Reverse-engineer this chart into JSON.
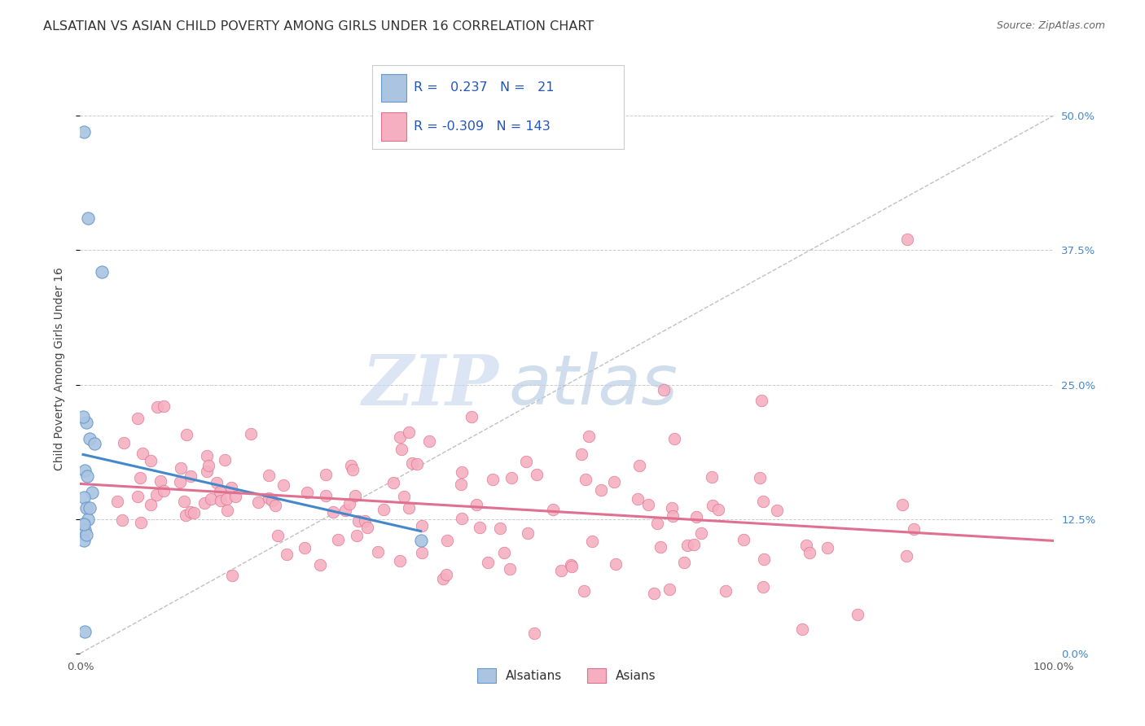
{
  "title": "ALSATIAN VS ASIAN CHILD POVERTY AMONG GIRLS UNDER 16 CORRELATION CHART",
  "source": "Source: ZipAtlas.com",
  "ylabel": "Child Poverty Among Girls Under 16",
  "xlim": [
    0,
    100
  ],
  "ylim": [
    0,
    53
  ],
  "ytick_labels": [
    "0.0%",
    "12.5%",
    "25.0%",
    "37.5%",
    "50.0%"
  ],
  "ytick_values": [
    0,
    12.5,
    25.0,
    37.5,
    50.0
  ],
  "grid_color": "#cccccc",
  "background_color": "#ffffff",
  "alsatian_color": "#aac4e2",
  "asian_color": "#f5afc0",
  "alsatian_edge": "#6699cc",
  "asian_edge": "#e07090",
  "trendline_alsatian": "#4488cc",
  "trendline_asian": "#e07090",
  "trendline_dashed_color": "#aaaaaa",
  "R_alsatian": 0.237,
  "N_alsatian": 21,
  "R_asian": -0.309,
  "N_asian": 143,
  "legend_label_alsatian": "Alsatians",
  "legend_label_asian": "Asians",
  "watermark_ZIP": "ZIP",
  "watermark_atlas": "atlas",
  "title_fontsize": 11.5,
  "label_fontsize": 10,
  "tick_fontsize": 9.5,
  "legend_fontsize": 11,
  "alsatian_x": [
    0.4,
    0.5,
    0.6,
    1.0,
    1.5,
    2.0,
    0.3,
    0.5,
    0.7,
    1.2,
    0.4,
    0.6,
    0.8,
    0.3,
    0.5,
    1.0,
    0.4,
    0.6,
    0.3,
    0.4,
    35.0
  ],
  "alsatian_y": [
    48.5,
    21.5,
    20.5,
    20.0,
    19.0,
    35.0,
    22.0,
    17.5,
    16.5,
    15.0,
    14.0,
    13.0,
    12.5,
    12.0,
    11.5,
    13.5,
    10.5,
    11.0,
    9.0,
    12.0,
    10.5
  ],
  "asian_outlier_x": 85.0,
  "asian_outlier_y": 38.5
}
